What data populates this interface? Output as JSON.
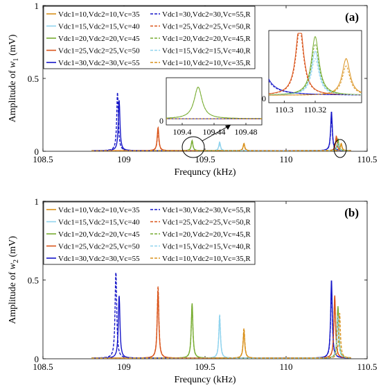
{
  "chart_data": [
    {
      "panel_label": "(a)",
      "type": "line",
      "xlabel": "Frequncy (kHz)",
      "ylabel": "Amplitude of w1 (mV)",
      "ylabel_plain": "Amplitude of ",
      "ylabel_var": "w",
      "ylabel_sub": "1",
      "ylabel_unit": " (mV)",
      "xlim": [
        108.5,
        110.5
      ],
      "ylim": [
        0,
        1
      ],
      "xticks": [
        "108.5",
        "109",
        "109.5",
        "110",
        "110.5"
      ],
      "yticks": [
        "0",
        "0.5",
        "1"
      ],
      "series": [
        {
          "name": "Vdc1=10,Vdc2=10,Vc=35",
          "color": "#d9901a",
          "dashed": false,
          "peaks": [
            {
              "x": 109.74,
              "y": 0.05
            },
            {
              "x": 110.34,
              "y": 0.05
            }
          ]
        },
        {
          "name": "Vdc1=15,Vdc2=15,Vc=40",
          "color": "#8fd3ee",
          "dashed": false,
          "peaks": [
            {
              "x": 109.59,
              "y": 0.06
            },
            {
              "x": 110.32,
              "y": 0.06
            }
          ]
        },
        {
          "name": "Vdc1=20,Vdc2=20,Vc=45",
          "color": "#77ac30",
          "dashed": false,
          "peaks": [
            {
              "x": 109.42,
              "y": 0.07
            },
            {
              "x": 110.32,
              "y": 0.08
            }
          ]
        },
        {
          "name": "Vdc1=25,Vdc2=25,Vc=50",
          "color": "#d95319",
          "dashed": false,
          "peaks": [
            {
              "x": 109.21,
              "y": 0.16
            },
            {
              "x": 110.31,
              "y": 0.1
            }
          ]
        },
        {
          "name": "Vdc1=30,Vdc2=30,Vc=55",
          "color": "#1515c8",
          "dashed": false,
          "peaks": [
            {
              "x": 108.97,
              "y": 0.35
            },
            {
              "x": 110.28,
              "y": 0.27
            }
          ]
        },
        {
          "name": "Vdc1=30,Vdc2=30,Vc=55,R",
          "color": "#1515c8",
          "dashed": true,
          "peaks": [
            {
              "x": 108.96,
              "y": 0.4
            },
            {
              "x": 110.28,
              "y": 0.24
            }
          ]
        },
        {
          "name": "Vdc1=25,Vdc2=25,Vc=50,R",
          "color": "#d95319",
          "dashed": true,
          "peaks": [
            {
              "x": 109.21,
              "y": 0.14
            },
            {
              "x": 110.31,
              "y": 0.09
            }
          ]
        },
        {
          "name": "Vdc1=20,Vdc2=20,Vc=45,R",
          "color": "#77ac30",
          "dashed": true,
          "peaks": [
            {
              "x": 109.42,
              "y": 0.07
            },
            {
              "x": 110.32,
              "y": 0.07
            }
          ]
        },
        {
          "name": "Vdc1=15,Vdc2=15,Vc=40,R",
          "color": "#8fd3ee",
          "dashed": true,
          "peaks": [
            {
              "x": 109.59,
              "y": 0.05
            },
            {
              "x": 110.32,
              "y": 0.05
            }
          ]
        },
        {
          "name": "Vdc1=10,Vdc2=10,Vc=35,R",
          "color": "#d9901a",
          "dashed": true,
          "peaks": [
            {
              "x": 109.74,
              "y": 0.04
            },
            {
              "x": 110.34,
              "y": 0.04
            }
          ]
        }
      ],
      "insets": [
        {
          "xticks": [
            "109.4",
            "109.44",
            "109.48"
          ],
          "yticks": [
            "0"
          ],
          "xlim": [
            109.38,
            109.5
          ]
        },
        {
          "xticks": [
            "110.3",
            "110.32"
          ],
          "yticks": [
            "0"
          ],
          "xlim": [
            110.29,
            110.35
          ]
        }
      ]
    },
    {
      "panel_label": "(b)",
      "type": "line",
      "xlabel": "Frequncy (kHz)",
      "ylabel": "Amplitude of w2 (mV)",
      "ylabel_plain": "Amplitude of ",
      "ylabel_var": "w",
      "ylabel_sub": "2",
      "ylabel_unit": " (mV)",
      "xlim": [
        108.5,
        110.5
      ],
      "ylim": [
        0,
        1
      ],
      "xticks": [
        "108.5",
        "109",
        "109.5",
        "110",
        "110.5"
      ],
      "yticks": [
        "0",
        "0.5",
        "1"
      ],
      "series": [
        {
          "name": "Vdc1=10,Vdc2=10,Vc=35",
          "color": "#d9901a",
          "dashed": false,
          "peaks": [
            {
              "x": 109.74,
              "y": 0.17
            },
            {
              "x": 110.32,
              "y": 0.3
            }
          ]
        },
        {
          "name": "Vdc1=15,Vdc2=15,Vc=40",
          "color": "#8fd3ee",
          "dashed": false,
          "peaks": [
            {
              "x": 109.59,
              "y": 0.26
            },
            {
              "x": 110.32,
              "y": 0.28
            }
          ]
        },
        {
          "name": "Vdc1=20,Vdc2=20,Vc=45",
          "color": "#77ac30",
          "dashed": false,
          "peaks": [
            {
              "x": 109.42,
              "y": 0.35
            },
            {
              "x": 110.32,
              "y": 0.33
            }
          ]
        },
        {
          "name": "Vdc1=25,Vdc2=25,Vc=50",
          "color": "#d95319",
          "dashed": false,
          "peaks": [
            {
              "x": 109.21,
              "y": 0.43
            },
            {
              "x": 110.3,
              "y": 0.4
            }
          ]
        },
        {
          "name": "Vdc1=30,Vdc2=30,Vc=55",
          "color": "#1515c8",
          "dashed": false,
          "peaks": [
            {
              "x": 108.97,
              "y": 0.4
            },
            {
              "x": 110.28,
              "y": 0.5
            }
          ]
        },
        {
          "name": "Vdc1=30,Vdc2=30,Vc=55,R",
          "color": "#1515c8",
          "dashed": true,
          "peaks": [
            {
              "x": 108.95,
              "y": 0.55
            },
            {
              "x": 110.28,
              "y": 0.45
            }
          ]
        },
        {
          "name": "Vdc1=25,Vdc2=25,Vc=50,R",
          "color": "#d95319",
          "dashed": true,
          "peaks": [
            {
              "x": 109.21,
              "y": 0.46
            },
            {
              "x": 110.3,
              "y": 0.38
            }
          ]
        },
        {
          "name": "Vdc1=20,Vdc2=20,Vc=45,R",
          "color": "#77ac30",
          "dashed": true,
          "peaks": [
            {
              "x": 109.42,
              "y": 0.34
            },
            {
              "x": 110.32,
              "y": 0.32
            }
          ]
        },
        {
          "name": "Vdc1=15,Vdc2=15,Vc=40,R",
          "color": "#8fd3ee",
          "dashed": true,
          "peaks": [
            {
              "x": 109.59,
              "y": 0.28
            },
            {
              "x": 110.32,
              "y": 0.27
            }
          ]
        },
        {
          "name": "Vdc1=10,Vdc2=10,Vc=35,R",
          "color": "#d9901a",
          "dashed": true,
          "peaks": [
            {
              "x": 109.74,
              "y": 0.19
            },
            {
              "x": 110.33,
              "y": 0.29
            }
          ]
        }
      ]
    }
  ]
}
